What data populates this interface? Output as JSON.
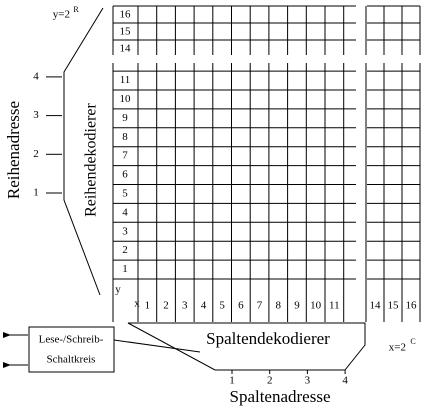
{
  "row_count": {
    "text": "y=2",
    "sup": "R"
  },
  "row_address": {
    "label": "Reihenadresse",
    "bits": [
      "1",
      "2",
      "3",
      "4"
    ]
  },
  "row_decoder": {
    "label": "Reihendekodierer",
    "variable": "y",
    "rows_lower": [
      "1",
      "2",
      "3",
      "4",
      "5",
      "6",
      "7",
      "8",
      "9",
      "10",
      "11"
    ],
    "rows_upper": [
      "14",
      "15",
      "16"
    ]
  },
  "column_decoder": {
    "label": "Spaltendekodierer",
    "variable": "x",
    "columns_left": [
      "1",
      "2",
      "3",
      "4",
      "5",
      "6",
      "7",
      "8",
      "9",
      "10",
      "11"
    ],
    "columns_right": [
      "14",
      "15",
      "16"
    ]
  },
  "column_count": {
    "text": "x=2",
    "sup": "C"
  },
  "column_address": {
    "label": "Spaltenadresse",
    "bits": [
      "1",
      "2",
      "3",
      "4"
    ]
  },
  "read_write": {
    "lines": [
      "Lese-/Schreib-",
      "Schaltkreis"
    ]
  }
}
